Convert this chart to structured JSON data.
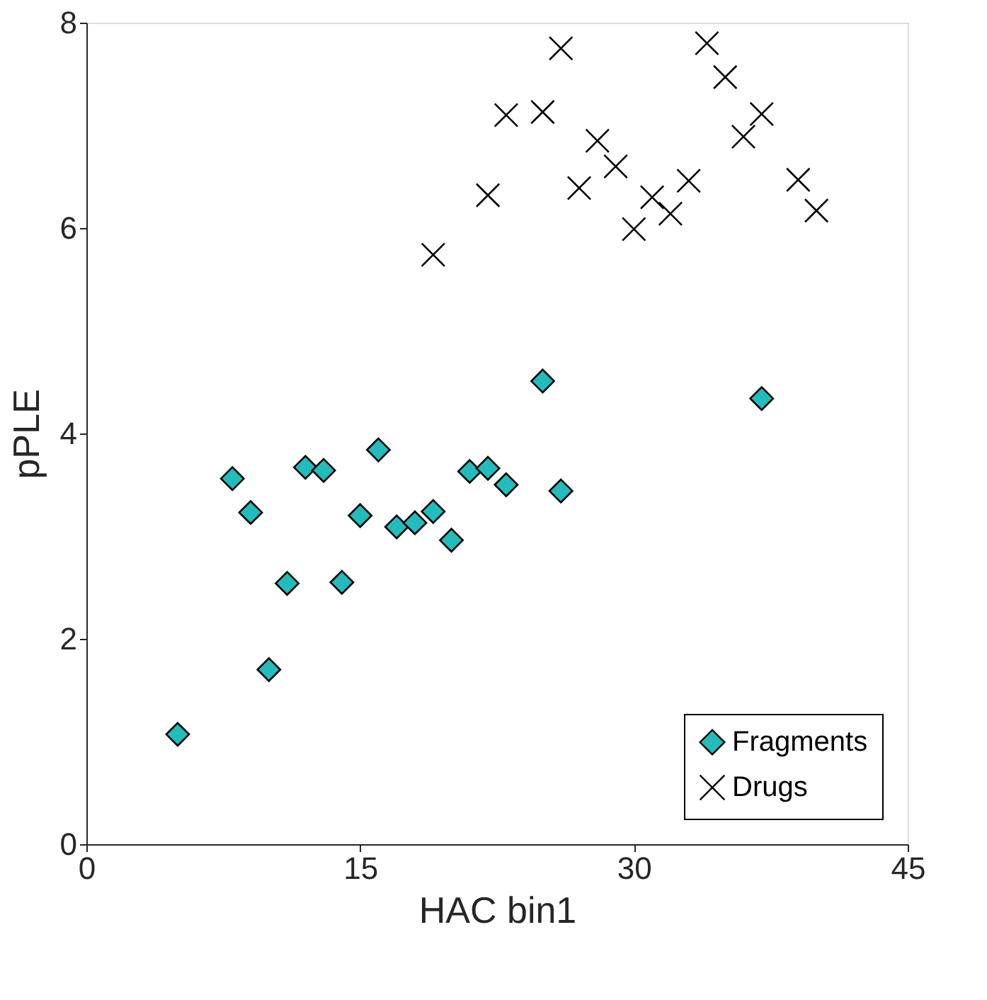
{
  "chart_data": {
    "type": "scatter",
    "xlabel": "HAC bin1",
    "ylabel": "pPLE",
    "xlim": [
      0,
      45
    ],
    "xticks": [
      0,
      15,
      30,
      45
    ],
    "ylim": [
      0,
      8
    ],
    "yticks": [
      0,
      2,
      4,
      6,
      8
    ],
    "grid": false,
    "legend": "bottom right",
    "series": [
      {
        "name": "Fragments",
        "color": "#22bcbc",
        "marker": "diamond",
        "x": [
          5,
          8,
          9,
          10,
          11,
          12,
          13,
          14,
          15,
          16,
          17,
          18,
          19,
          20,
          21,
          22,
          23,
          25,
          26,
          37
        ],
        "values": [
          1.07,
          3.56,
          3.23,
          1.7,
          2.54,
          3.67,
          3.64,
          2.55,
          3.2,
          3.84,
          3.09,
          3.13,
          3.24,
          2.96,
          3.63,
          3.66,
          3.5,
          4.51,
          3.44,
          4.34
        ]
      },
      {
        "name": "Drugs",
        "color": "#000000",
        "marker": "cross",
        "x": [
          19,
          22,
          23,
          25,
          26,
          27,
          28,
          29,
          30,
          31,
          32,
          33,
          34,
          35,
          36,
          37,
          39,
          40
        ],
        "values": [
          5.74,
          6.32,
          7.1,
          7.13,
          7.75,
          6.39,
          6.85,
          6.6,
          5.99,
          6.3,
          6.14,
          6.46,
          7.8,
          7.47,
          6.89,
          7.11,
          6.47,
          6.17
        ]
      }
    ]
  }
}
